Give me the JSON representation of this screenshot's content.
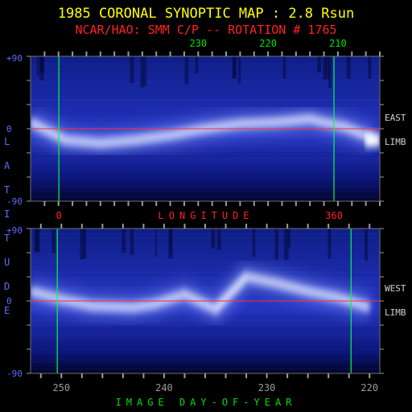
{
  "title": "1985 CORONAL SYNOPTIC MAP : 2.8 Rsun",
  "subtitle": "NCAR/HAO: SMM C/P -- ROTATION # 1765",
  "colors": {
    "background": "#000000",
    "title": "#ffff00",
    "subtitle": "#ff2020",
    "latitude_text": "#5a6cff",
    "tick_green": "#00e000",
    "gridline_green": "#00ff40",
    "equator_red": "#ff3030",
    "axis_gray": "#9a9a9a",
    "limb_text": "#d0d0d0",
    "longitude_text": "#ff2020",
    "doy_text": "#00e000",
    "map_base": "#0a1a9a",
    "map_bright": "#e8ecff"
  },
  "chart_data": [
    {
      "type": "heatmap",
      "panel": "east-limb",
      "limb_label_1": "EAST",
      "limb_label_2": "LIMB",
      "ylabel": "LATITUDE",
      "ylim": [
        -90,
        90
      ],
      "y_ticks": [
        "+90",
        "0",
        "-90"
      ],
      "top_ticks": [
        "230",
        "220",
        "210"
      ],
      "top_tick_values": [
        230,
        220,
        210
      ],
      "top_axis_range": [
        254,
        204
      ],
      "bottom_ticks": [
        "0",
        "360"
      ],
      "bottom_tick_values": [
        0,
        360
      ],
      "bottom_axis_range": [
        -37,
        420
      ],
      "xlabel": "LONGITUDE",
      "streamer_belt": {
        "x_day": [
          254,
          249,
          244,
          239,
          234,
          229,
          224,
          219,
          214,
          209,
          205
        ],
        "lat": [
          8,
          -14,
          -18,
          -14,
          -8,
          0,
          6,
          8,
          12,
          2,
          -12
        ]
      },
      "vertical_markers_longitude": [
        0,
        360
      ],
      "equator_lat": 0
    },
    {
      "type": "heatmap",
      "panel": "west-limb",
      "limb_label_1": "WEST",
      "limb_label_2": "LIMB",
      "ylim": [
        -90,
        90
      ],
      "y_ticks": [
        "+90",
        "0",
        "-90"
      ],
      "bottom_ticks": [
        "250",
        "240",
        "230",
        "220"
      ],
      "bottom_tick_values": [
        250,
        240,
        230,
        220
      ],
      "x_axis_range": [
        253,
        219
      ],
      "xlabel": "IMAGE DAY-OF-YEAR",
      "streamer_belt": {
        "x_day": [
          253,
          250,
          247,
          243,
          241,
          238,
          235,
          232,
          229,
          226,
          223,
          220
        ],
        "lat": [
          12,
          2,
          -6,
          -8,
          -4,
          8,
          -10,
          30,
          22,
          12,
          4,
          -8
        ]
      },
      "vertical_markers_day": [
        250.4,
        221.8
      ],
      "equator_lat": 0
    }
  ]
}
